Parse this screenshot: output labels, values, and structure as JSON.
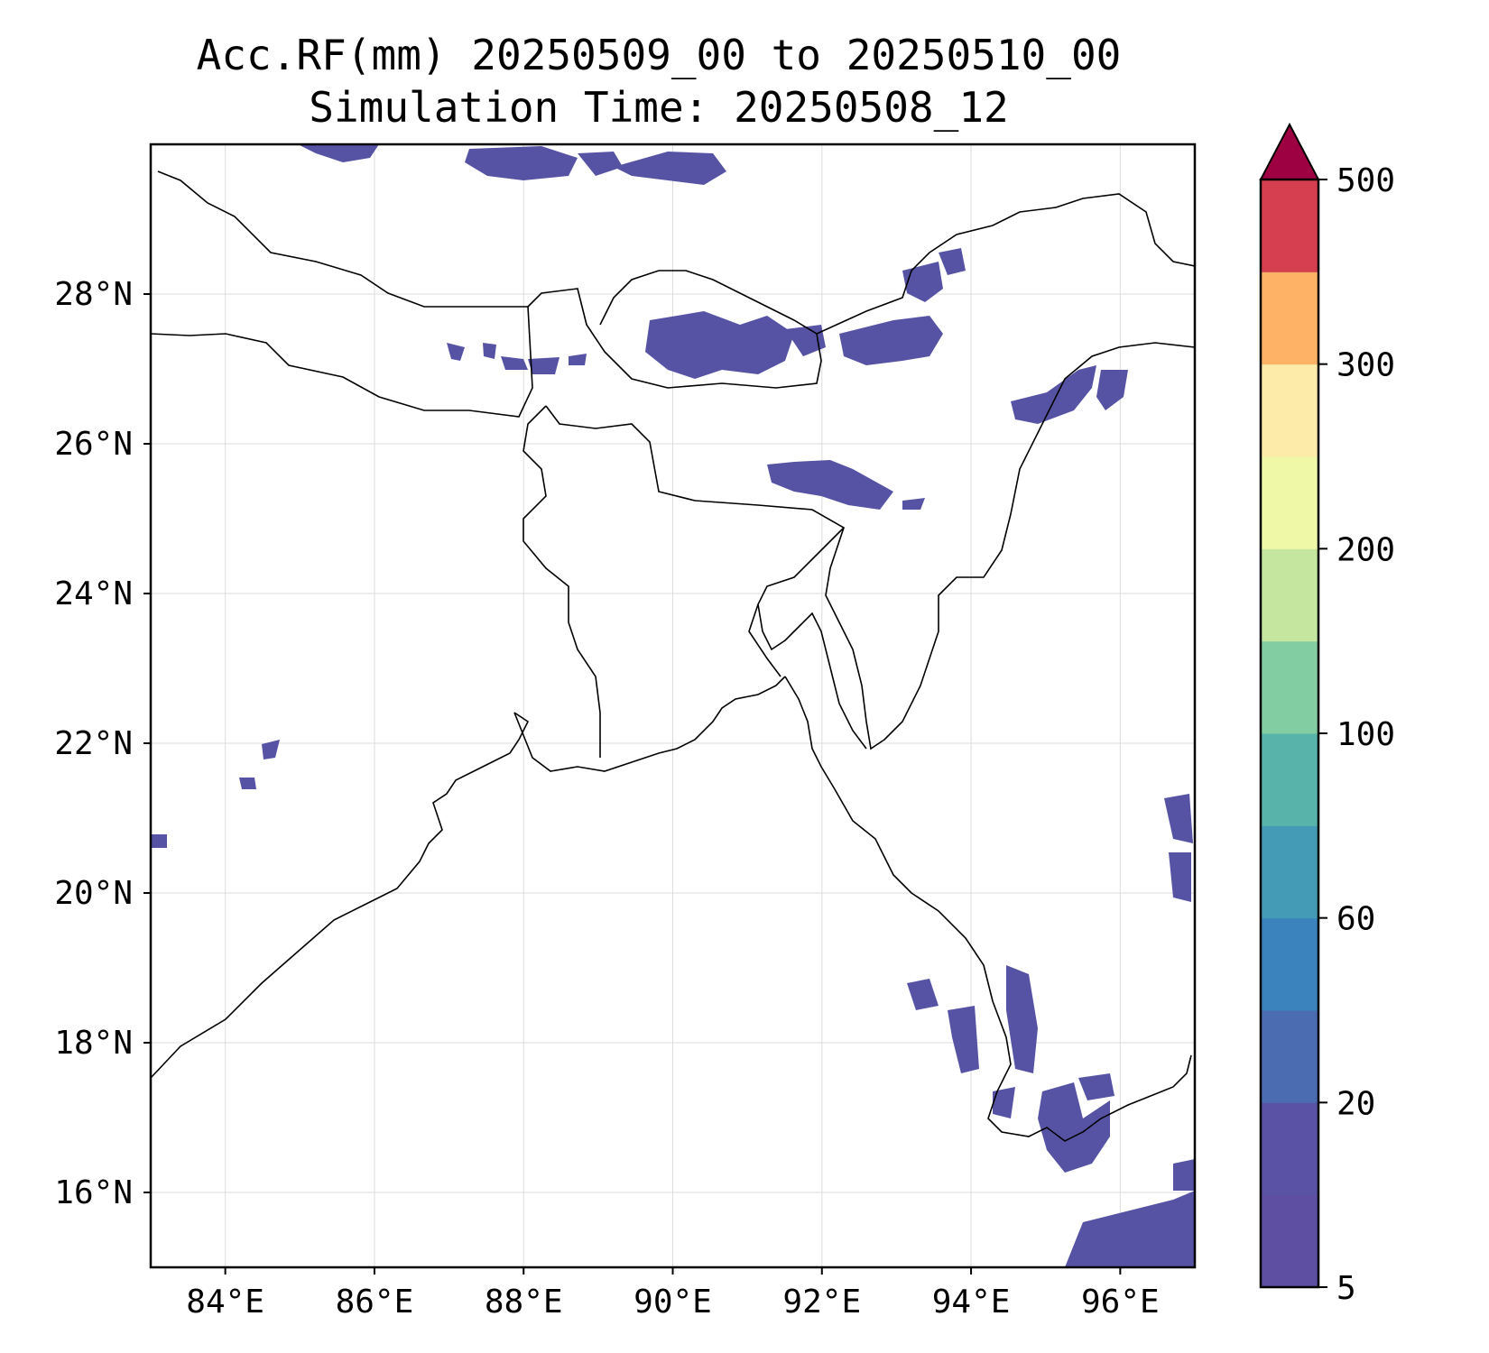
{
  "title": {
    "line1": "Acc.RF(mm) 20250509_00 to 20250510_00",
    "line2": "Simulation Time: 20250508_12"
  },
  "map": {
    "lon_range": [
      83.0,
      97.0
    ],
    "lat_range": [
      15.0,
      30.0
    ],
    "x_ticks": [
      "84°E",
      "86°E",
      "88°E",
      "90°E",
      "92°E",
      "94°E",
      "96°E"
    ],
    "y_ticks": [
      "28°N",
      "26°N",
      "24°N",
      "22°N",
      "20°N",
      "18°N",
      "16°N"
    ],
    "gridlines": true
  },
  "colorbar": {
    "tick_labels": [
      "5",
      "20",
      "60",
      "100",
      "200",
      "300",
      "500"
    ],
    "colors": [
      "#5e4fa2",
      "#5a52a4",
      "#4b6cb0",
      "#3b83bd",
      "#449bb5",
      "#58b3aa",
      "#83cda3",
      "#c4e69e",
      "#eff8a7",
      "#fdebaa",
      "#fdb265",
      "#d63f4f",
      "#9e0142"
    ],
    "extend": "max"
  },
  "rain_color": "#5653a5"
}
